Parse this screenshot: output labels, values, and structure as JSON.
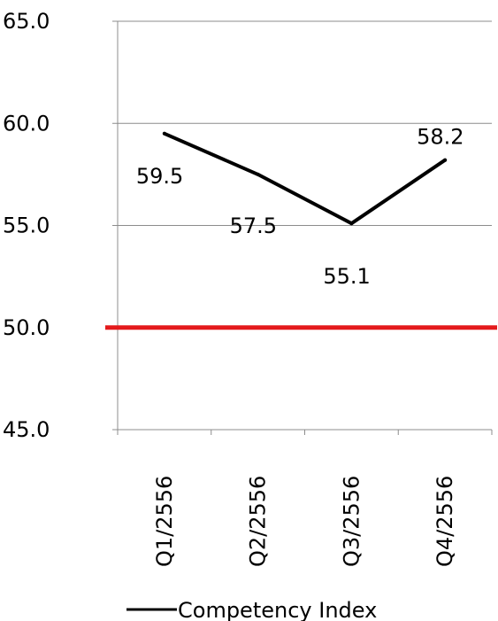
{
  "chart_data": {
    "type": "line",
    "categories": [
      "Q1/2556",
      "Q2/2556",
      "Q3/2556",
      "Q4/2556"
    ],
    "series": [
      {
        "name": "Competency Index",
        "values": [
          59.5,
          57.5,
          55.1,
          58.2
        ],
        "data_labels": [
          "59.5",
          "57.5",
          "55.1",
          "58.2"
        ],
        "color": "#000000"
      }
    ],
    "reference_line": {
      "value": 50.0,
      "color": "#e41a1c"
    },
    "ylim": [
      45.0,
      65.0
    ],
    "y_ticks": [
      "45.0",
      "50.0",
      "55.0",
      "60.0",
      "65.0"
    ],
    "y_tick_values": [
      45,
      50,
      55,
      60,
      65
    ],
    "gridlines": true,
    "gridline_color": "#8c8c8c",
    "legend_position": "bottom",
    "title": "",
    "xlabel": "",
    "ylabel": ""
  }
}
